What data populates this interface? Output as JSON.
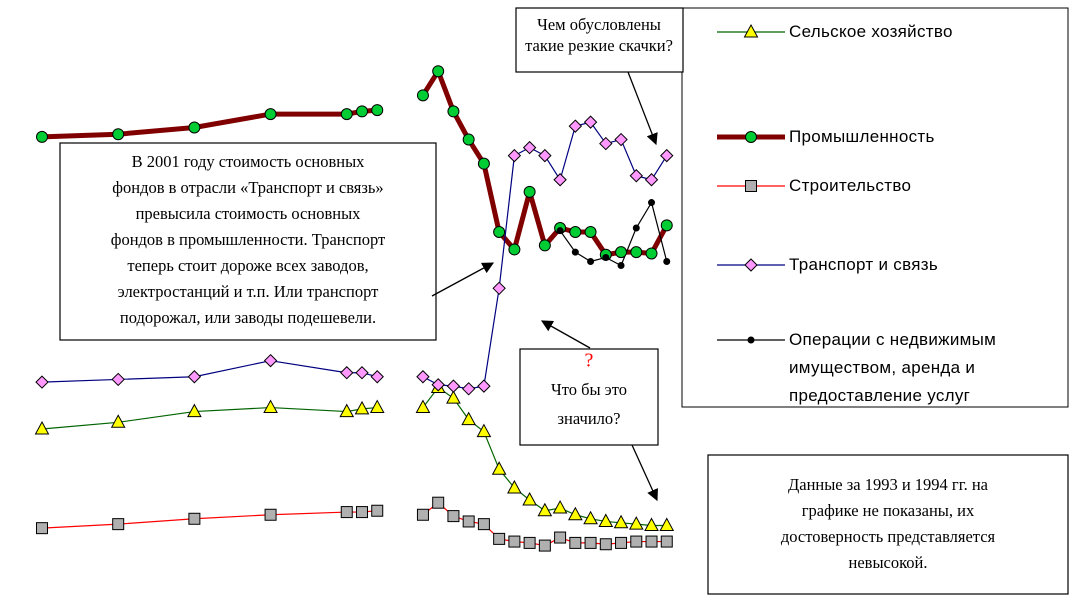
{
  "chart_data": {
    "type": "line",
    "x": [
      1970,
      1975,
      1980,
      1985,
      1990,
      1991,
      1992,
      1993,
      1994,
      1995,
      1996,
      1997,
      1998,
      1999,
      2000,
      2001,
      2002,
      2003,
      2004,
      2005,
      2006,
      2007,
      2008,
      2009,
      2010,
      2011
    ],
    "xlim": [
      1970,
      2012
    ],
    "xticks": [
      1970,
      1975,
      1980,
      1985,
      1990,
      1995,
      2000,
      2005,
      2010
    ],
    "ylim": [
      0,
      40
    ],
    "yticks": [
      0,
      5,
      10,
      15,
      20,
      25,
      30,
      35,
      40
    ],
    "grid": "x",
    "series": [
      {
        "name": "Сельское хозяйство",
        "color": "#006400",
        "marker": "triangle",
        "marker_color": "#ffff00",
        "width": 1.2,
        "values": [
          10.0,
          10.5,
          11.3,
          11.6,
          11.3,
          11.5,
          11.6,
          null,
          null,
          11.6,
          13.1,
          12.3,
          10.7,
          9.8,
          7.0,
          5.6,
          4.7,
          3.9,
          4.1,
          3.6,
          3.3,
          3.1,
          3.0,
          2.9,
          2.8,
          2.8
        ]
      },
      {
        "name": "Промышленность",
        "color": "#800000",
        "marker": "circle",
        "marker_color": "#00cc33",
        "width": 5,
        "values": [
          31.8,
          32.0,
          32.5,
          33.5,
          33.5,
          33.7,
          33.8,
          null,
          null,
          34.9,
          36.7,
          33.7,
          31.6,
          29.8,
          24.7,
          23.4,
          27.7,
          23.7,
          25.0,
          24.7,
          24.7,
          23.0,
          23.2,
          23.2,
          23.1,
          25.2
        ]
      },
      {
        "name": "Строительство",
        "color": "#ff0000",
        "marker": "square",
        "marker_color": "#b0b0b0",
        "width": 1.2,
        "values": [
          2.6,
          2.9,
          3.3,
          3.6,
          3.8,
          3.8,
          3.9,
          null,
          null,
          3.6,
          4.5,
          3.5,
          3.1,
          2.9,
          1.8,
          1.6,
          1.5,
          1.3,
          1.9,
          1.5,
          1.5,
          1.4,
          1.5,
          1.6,
          1.6,
          1.6
        ]
      },
      {
        "name": "Транспорт и связь",
        "color": "#000080",
        "marker": "diamond",
        "marker_color": "#ff99ff",
        "width": 1.2,
        "values": [
          13.5,
          13.7,
          13.9,
          15.1,
          14.2,
          14.2,
          13.9,
          null,
          null,
          13.9,
          13.3,
          13.2,
          13.0,
          13.2,
          20.5,
          30.4,
          31.0,
          30.4,
          28.6,
          32.6,
          32.9,
          31.3,
          31.6,
          28.9,
          28.6,
          30.4
        ]
      },
      {
        "name": "Операции с недвижимым имуществом, аренда и предоставление услуг",
        "color": "#000000",
        "marker": "dot",
        "marker_color": "#000000",
        "width": 1.2,
        "values": [
          null,
          null,
          null,
          null,
          null,
          null,
          null,
          null,
          null,
          null,
          null,
          null,
          null,
          null,
          null,
          null,
          null,
          null,
          24.8,
          23.2,
          22.5,
          22.8,
          22.2,
          25.0,
          26.9,
          22.5
        ]
      }
    ],
    "annotations": [
      {
        "lines": [
          "Чем обусловлены",
          "такие резкие скачки?"
        ]
      },
      {
        "lines": [
          "В 2001 году стоимость основных",
          "фондов в отрасли «Транспорт и связь»",
          "превысила стоимость основных",
          "фондов в промышленности. Транспорт",
          "теперь стоит дороже всех заводов,",
          "электростанций и т.п. Или транспорт",
          "подорожал, или заводы подешевели."
        ]
      },
      {
        "lines": [
          "?",
          "Что бы это",
          "значило?"
        ]
      },
      {
        "lines": [
          "Данные за 1993 и 1994 гг. на",
          "графике не показаны, их",
          "достоверность представляется",
          "невысокой."
        ]
      }
    ]
  }
}
